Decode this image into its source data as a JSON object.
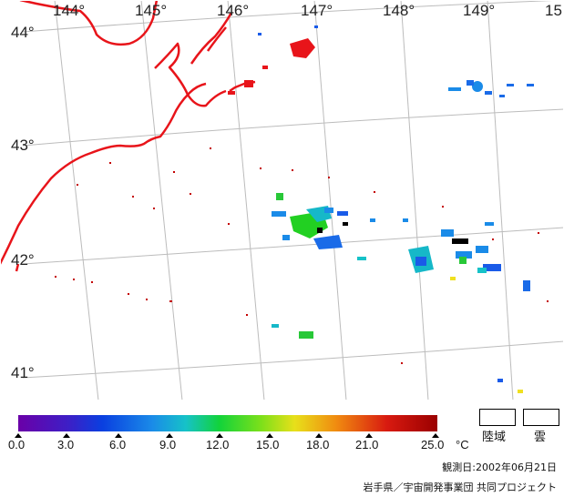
{
  "longitudes": [
    "144°",
    "145°",
    "146°",
    "147°",
    "148°",
    "149°",
    "15"
  ],
  "latitudes": [
    "44°",
    "43°",
    "42°",
    "41°"
  ],
  "colorbar": {
    "ticks": [
      "0.0",
      "3.0",
      "6.0",
      "9.0",
      "12.0",
      "15.0",
      "18.0",
      "21.0",
      "25.0"
    ],
    "unit": "°C"
  },
  "legend": {
    "land": "陸域",
    "cloud": "雲"
  },
  "observation": "観測日:2002年06月21日",
  "credit": "岩手県／宇宙開発事業団 共同プロジェクト",
  "colors": {
    "coast": "#e8141a",
    "grid": "#b9b9b9"
  }
}
